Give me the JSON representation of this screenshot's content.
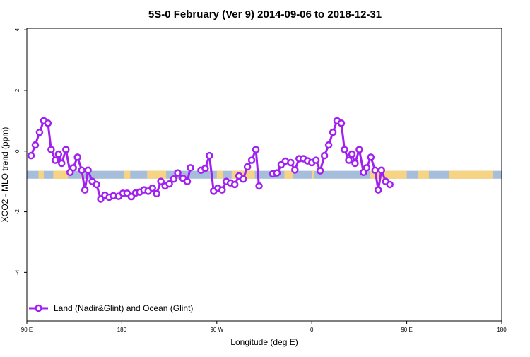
{
  "chart_data": {
    "type": "line",
    "title": "5S-0 February (Ver 9)   2014-09-06 to 2018-12-31",
    "xlabel": "Longitude (deg E)",
    "ylabel": "XCO2 - MLO trend (ppm)",
    "xlim": [
      90,
      540
    ],
    "ylim": [
      -5.6,
      4.05
    ],
    "x_tick_values": [
      90,
      180,
      270,
      360,
      450,
      540
    ],
    "x_tick_labels": [
      "90 E",
      "180",
      "90 W",
      "0",
      "90 E",
      "180"
    ],
    "y_tick_values": [
      -4,
      -2,
      0,
      2,
      4
    ],
    "y_tick_labels": [
      "-4",
      "-2",
      "0",
      "2",
      "4"
    ],
    "grid": false,
    "legend_position": "bottom-left",
    "band": {
      "y_center": -0.78,
      "half_height": 0.13
    },
    "colors": {
      "series": "#A020F0",
      "band": "#A6BDDB",
      "land": "#FFD67A"
    },
    "land_segments": [
      [
        101,
        106
      ],
      [
        115,
        129
      ],
      [
        141,
        144
      ],
      [
        182,
        188
      ],
      [
        204,
        222
      ],
      [
        270,
        276
      ],
      [
        284,
        306
      ],
      [
        334,
        342
      ],
      [
        360,
        362
      ],
      [
        415,
        450
      ],
      [
        461,
        471
      ],
      [
        490,
        532
      ]
    ],
    "series": [
      {
        "name": "Land (Nadir&Glint) and Ocean (Glint)",
        "segments": [
          [
            [
              94,
              -0.15
            ],
            [
              98,
              0.2
            ],
            [
              102,
              0.62
            ],
            [
              106,
              1.0
            ],
            [
              110,
              0.92
            ],
            [
              113,
              0.05
            ],
            [
              117,
              -0.3
            ],
            [
              120,
              -0.1
            ],
            [
              123,
              -0.4
            ],
            [
              127,
              0.05
            ],
            [
              131,
              -0.7
            ],
            [
              134,
              -0.55
            ],
            [
              138,
              -0.2
            ],
            [
              142,
              -0.63
            ],
            [
              145,
              -1.28
            ],
            [
              148,
              -0.63
            ],
            [
              152,
              -1.0
            ],
            [
              156,
              -1.1
            ],
            [
              160,
              -1.58
            ],
            [
              164,
              -1.45
            ],
            [
              168,
              -1.52
            ],
            [
              172,
              -1.47
            ],
            [
              177,
              -1.49
            ],
            [
              181,
              -1.39
            ],
            [
              185,
              -1.39
            ],
            [
              189,
              -1.5
            ],
            [
              193,
              -1.38
            ],
            [
              197,
              -1.35
            ],
            [
              201,
              -1.28
            ],
            [
              205,
              -1.32
            ],
            [
              209,
              -1.22
            ],
            [
              213,
              -1.4
            ],
            [
              217,
              -1.0
            ],
            [
              221,
              -1.15
            ],
            [
              225,
              -1.08
            ],
            [
              229,
              -0.92
            ],
            [
              233,
              -0.72
            ],
            [
              238,
              -0.9
            ],
            [
              242,
              -1.0
            ],
            [
              245,
              -0.55
            ]
          ],
          [
            [
              255,
              -0.63
            ],
            [
              259,
              -0.57
            ],
            [
              263,
              -0.15
            ],
            [
              267,
              -1.32
            ],
            [
              271,
              -1.22
            ],
            [
              275,
              -1.28
            ],
            [
              279,
              -1.0
            ],
            [
              283,
              -1.05
            ],
            [
              287,
              -1.1
            ],
            [
              291,
              -0.82
            ],
            [
              295,
              -0.92
            ],
            [
              299,
              -0.52
            ],
            [
              303,
              -0.3
            ],
            [
              307,
              0.05
            ],
            [
              310,
              -1.15
            ]
          ],
          [
            [
              323,
              -0.75
            ],
            [
              327,
              -0.72
            ],
            [
              331,
              -0.45
            ],
            [
              335,
              -0.33
            ],
            [
              340,
              -0.38
            ],
            [
              344,
              -0.62
            ],
            [
              348,
              -0.25
            ],
            [
              352,
              -0.25
            ],
            [
              356,
              -0.32
            ],
            [
              360,
              -0.38
            ],
            [
              364,
              -0.3
            ],
            [
              368,
              -0.65
            ],
            [
              372,
              -0.15
            ],
            [
              376,
              0.2
            ],
            [
              380,
              0.62
            ],
            [
              384,
              1.0
            ],
            [
              388,
              0.92
            ],
            [
              391,
              0.05
            ],
            [
              395,
              -0.3
            ],
            [
              398,
              -0.1
            ],
            [
              401,
              -0.4
            ],
            [
              405,
              0.05
            ],
            [
              409,
              -0.7
            ],
            [
              412,
              -0.55
            ],
            [
              416,
              -0.2
            ],
            [
              420,
              -0.63
            ],
            [
              423,
              -1.28
            ],
            [
              426,
              -0.63
            ],
            [
              430,
              -1.0
            ],
            [
              434,
              -1.1
            ]
          ]
        ]
      }
    ]
  }
}
